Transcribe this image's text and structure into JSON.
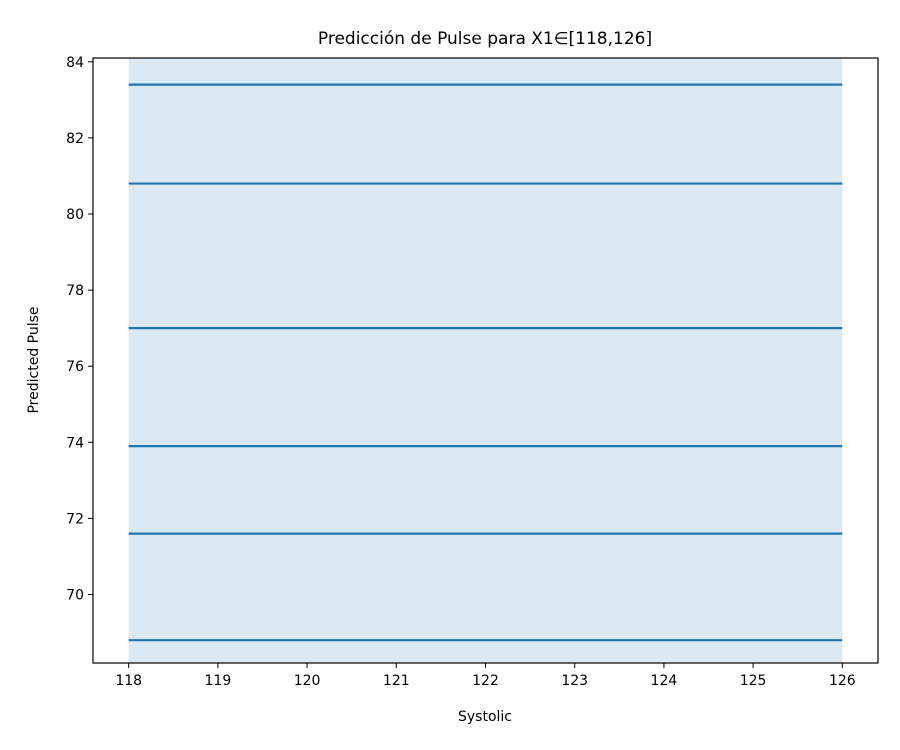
{
  "chart_data": {
    "type": "line",
    "title": "Predicción de Pulse para X1∈[118,126]",
    "xlabel": "Systolic",
    "ylabel": "Predicted Pulse",
    "xlim": [
      117.6,
      126.4
    ],
    "ylim": [
      68.2,
      84.1
    ],
    "xticks": [
      118,
      119,
      120,
      121,
      122,
      123,
      124,
      125,
      126
    ],
    "yticks": [
      70,
      72,
      74,
      76,
      78,
      80,
      82,
      84
    ],
    "band": {
      "x": [
        118,
        126
      ],
      "color": "#dce9f3"
    },
    "grid": false,
    "series": [
      {
        "x": [
          118,
          126
        ],
        "y": [
          83.4,
          83.4
        ]
      },
      {
        "x": [
          118,
          126
        ],
        "y": [
          80.8,
          80.8
        ]
      },
      {
        "x": [
          118,
          126
        ],
        "y": [
          77.0,
          77.0
        ]
      },
      {
        "x": [
          118,
          126
        ],
        "y": [
          73.9,
          73.9
        ]
      },
      {
        "x": [
          118,
          126
        ],
        "y": [
          71.6,
          71.6
        ]
      },
      {
        "x": [
          118,
          126
        ],
        "y": [
          68.8,
          68.8
        ]
      }
    ],
    "line_color": "#1f77b4"
  }
}
